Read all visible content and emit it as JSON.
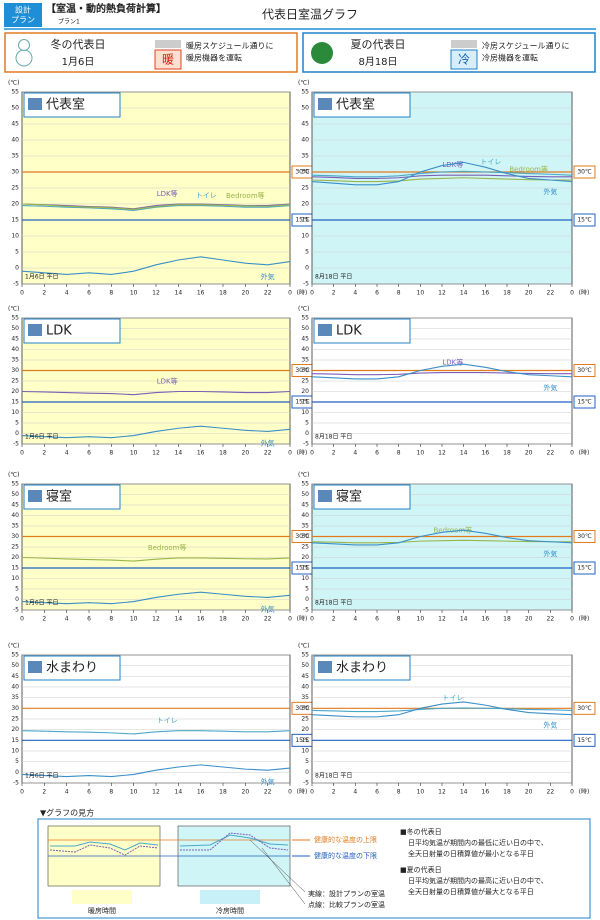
{
  "header": {
    "badge": [
      "設計",
      "プラン"
    ],
    "title": "【室温・動的熱負荷計算】",
    "plan": "プラン1",
    "page_title": "代表日室温グラフ"
  },
  "seasons": [
    {
      "title": "冬の代表日",
      "date": "1月6日",
      "icon": "暖",
      "note": [
        "暖房スケジュール通りに",
        "暖房機器を運転"
      ]
    },
    {
      "title": "夏の代表日",
      "date": "8月18日",
      "icon": "冷",
      "note": [
        "冷房スケジュール通りに",
        "冷房機器を運転"
      ]
    }
  ],
  "chart_data": [
    {
      "type": "line",
      "title": "代表室",
      "day_label": "1月6日 平日",
      "y_unit": "(℃)",
      "x_unit": "(時)",
      "background": "#ffffc8",
      "x": [
        0,
        2,
        4,
        6,
        8,
        10,
        12,
        14,
        16,
        18,
        20,
        22,
        24
      ],
      "xlim": [
        0,
        24
      ],
      "xticks": [
        0,
        2,
        4,
        6,
        8,
        10,
        12,
        14,
        16,
        18,
        20,
        22,
        {
          "value": 24,
          "label": "0"
        }
      ],
      "ylim": [
        -5,
        55
      ],
      "yticks": [
        -5,
        0,
        5,
        10,
        15,
        20,
        25,
        30,
        35,
        40,
        45,
        50,
        55
      ],
      "grid": true,
      "reference_lines": [
        {
          "value": 30,
          "label": "30℃",
          "color": "#e07b20"
        },
        {
          "value": 15,
          "label": "15℃",
          "color": "#2060c0"
        }
      ],
      "series": [
        {
          "name": "LDK等",
          "color": "#7b5fb5",
          "values": [
            20,
            19.8,
            19.5,
            19.2,
            19,
            18.5,
            19.5,
            20,
            20,
            19.8,
            19.5,
            19.5,
            20
          ]
        },
        {
          "name": "トイレ",
          "color": "#4aa8c8",
          "values": [
            19.5,
            19.3,
            19,
            18.8,
            18.5,
            18,
            19,
            19.5,
            19.5,
            19.3,
            19,
            19,
            19.5
          ]
        },
        {
          "name": "Bedroom等",
          "color": "#9ab54a",
          "values": [
            20,
            19.7,
            19.3,
            19,
            18.8,
            18.3,
            19.2,
            19.8,
            19.8,
            19.6,
            19.4,
            19.3,
            19.8
          ]
        },
        {
          "name": "外気",
          "color": "#3a8fc8",
          "values": [
            -1,
            -1.5,
            -2,
            -1.5,
            -2,
            -1,
            1,
            2.5,
            3.5,
            2.5,
            1.5,
            1,
            2
          ]
        }
      ]
    },
    {
      "type": "line",
      "title": "代表室",
      "day_label": "8月18日 平日",
      "y_unit": "(℃)",
      "x_unit": "(時)",
      "background": "#d0f5f7",
      "x": [
        0,
        2,
        4,
        6,
        8,
        10,
        12,
        14,
        16,
        18,
        20,
        22,
        24
      ],
      "xlim": [
        0,
        24
      ],
      "xticks": [
        0,
        2,
        4,
        6,
        8,
        10,
        12,
        14,
        16,
        18,
        20,
        22,
        {
          "value": 24,
          "label": "0"
        }
      ],
      "ylim": [
        -5,
        55
      ],
      "yticks": [
        -5,
        0,
        5,
        10,
        15,
        20,
        25,
        30,
        35,
        40,
        45,
        50,
        55
      ],
      "grid": true,
      "reference_lines": [
        {
          "value": 30,
          "label": "30℃",
          "color": "#e07b20"
        },
        {
          "value": 15,
          "label": "15℃",
          "color": "#2060c0"
        }
      ],
      "series": [
        {
          "name": "LDK等",
          "color": "#7b5fb5",
          "values": [
            28.5,
            28.3,
            28,
            28,
            28.2,
            28.8,
            29,
            29,
            29,
            28.8,
            28.6,
            28.5,
            28.5
          ]
        },
        {
          "name": "トイレ",
          "color": "#4aa8c8",
          "values": [
            29,
            28.8,
            28.5,
            28.5,
            28.8,
            29.5,
            30,
            30.2,
            30,
            29.8,
            29.5,
            29.3,
            29
          ]
        },
        {
          "name": "Bedroom等",
          "color": "#9ab54a",
          "values": [
            27.5,
            27.3,
            27,
            27,
            27.2,
            27.8,
            28,
            28.2,
            28,
            27.8,
            27.6,
            27.5,
            27.5
          ]
        },
        {
          "name": "外気",
          "color": "#3a8fc8",
          "values": [
            27,
            26.5,
            26,
            26,
            27,
            30,
            32,
            33,
            31.5,
            29.5,
            28,
            27.5,
            27
          ]
        }
      ]
    },
    {
      "type": "line",
      "title": "LDK",
      "day_label": "1月6日 平日",
      "y_unit": "(℃)",
      "x_unit": "(時)",
      "background": "#ffffc8",
      "x": [
        0,
        2,
        4,
        6,
        8,
        10,
        12,
        14,
        16,
        18,
        20,
        22,
        24
      ],
      "xlim": [
        0,
        24
      ],
      "xticks": [
        0,
        2,
        4,
        6,
        8,
        10,
        12,
        14,
        16,
        18,
        20,
        22,
        {
          "value": 24,
          "label": "0"
        }
      ],
      "ylim": [
        -5,
        55
      ],
      "yticks": [
        -5,
        0,
        5,
        10,
        15,
        20,
        25,
        30,
        35,
        40,
        45,
        50,
        55
      ],
      "grid": true,
      "reference_lines": [
        {
          "value": 30,
          "label": "30℃",
          "color": "#e07b20"
        },
        {
          "value": 15,
          "label": "15℃",
          "color": "#2060c0"
        }
      ],
      "series": [
        {
          "name": "LDK等",
          "color": "#7b5fb5",
          "values": [
            20,
            19.8,
            19.5,
            19.2,
            19,
            18.5,
            19.5,
            20,
            20,
            19.8,
            19.5,
            19.5,
            20
          ]
        },
        {
          "name": "外気",
          "color": "#3a8fc8",
          "values": [
            -1,
            -1.5,
            -2,
            -1.5,
            -2,
            -1,
            1,
            2.5,
            3.5,
            2.5,
            1.5,
            1,
            2
          ]
        }
      ]
    },
    {
      "type": "line",
      "title": "LDK",
      "day_label": "8月18日 平日",
      "y_unit": "(℃)",
      "x_unit": "(時)",
      "background": "#ffffff",
      "x": [
        0,
        2,
        4,
        6,
        8,
        10,
        12,
        14,
        16,
        18,
        20,
        22,
        24
      ],
      "xlim": [
        0,
        24
      ],
      "xticks": [
        0,
        2,
        4,
        6,
        8,
        10,
        12,
        14,
        16,
        18,
        20,
        22,
        {
          "value": 24,
          "label": "0"
        }
      ],
      "ylim": [
        -5,
        55
      ],
      "yticks": [
        -5,
        0,
        5,
        10,
        15,
        20,
        25,
        30,
        35,
        40,
        45,
        50,
        55
      ],
      "grid": true,
      "reference_lines": [
        {
          "value": 30,
          "label": "30℃",
          "color": "#e07b20"
        },
        {
          "value": 15,
          "label": "15℃",
          "color": "#2060c0"
        }
      ],
      "series": [
        {
          "name": "LDK等",
          "color": "#7b5fb5",
          "values": [
            28.5,
            28.3,
            28,
            28,
            28.2,
            28.8,
            29,
            29,
            29,
            28.8,
            28.6,
            28.5,
            28.5
          ]
        },
        {
          "name": "外気",
          "color": "#3a8fc8",
          "values": [
            27,
            26.5,
            26,
            26,
            27,
            30,
            32,
            33,
            31.5,
            29.5,
            28,
            27.5,
            27
          ]
        }
      ]
    },
    {
      "type": "line",
      "title": "寝室",
      "day_label": "1月6日 平日",
      "y_unit": "(℃)",
      "x_unit": "(時)",
      "background": "#ffffc8",
      "x": [
        0,
        2,
        4,
        6,
        8,
        10,
        12,
        14,
        16,
        18,
        20,
        22,
        24
      ],
      "xlim": [
        0,
        24
      ],
      "xticks": [
        0,
        2,
        4,
        6,
        8,
        10,
        12,
        14,
        16,
        18,
        20,
        22,
        {
          "value": 24,
          "label": "0"
        }
      ],
      "ylim": [
        -5,
        55
      ],
      "yticks": [
        -5,
        0,
        5,
        10,
        15,
        20,
        25,
        30,
        35,
        40,
        45,
        50,
        55
      ],
      "grid": true,
      "reference_lines": [
        {
          "value": 30,
          "label": "30℃",
          "color": "#e07b20"
        },
        {
          "value": 15,
          "label": "15℃",
          "color": "#2060c0"
        }
      ],
      "series": [
        {
          "name": "Bedroom等",
          "color": "#9ab54a",
          "values": [
            20,
            19.7,
            19.3,
            19,
            18.8,
            18.3,
            19.2,
            19.8,
            19.8,
            19.6,
            19.4,
            19.3,
            19.8
          ]
        },
        {
          "name": "外気",
          "color": "#3a8fc8",
          "values": [
            -1,
            -1.5,
            -2,
            -1.5,
            -2,
            -1,
            1,
            2.5,
            3.5,
            2.5,
            1.5,
            1,
            2
          ]
        }
      ]
    },
    {
      "type": "line",
      "title": "寝室",
      "day_label": "8月18日 平日",
      "y_unit": "(℃)",
      "x_unit": "(時)",
      "background": "#d0f5f7",
      "x": [
        0,
        2,
        4,
        6,
        8,
        10,
        12,
        14,
        16,
        18,
        20,
        22,
        24
      ],
      "xlim": [
        0,
        24
      ],
      "xticks": [
        0,
        2,
        4,
        6,
        8,
        10,
        12,
        14,
        16,
        18,
        20,
        22,
        {
          "value": 24,
          "label": "0"
        }
      ],
      "ylim": [
        -5,
        55
      ],
      "yticks": [
        -5,
        0,
        5,
        10,
        15,
        20,
        25,
        30,
        35,
        40,
        45,
        50,
        55
      ],
      "grid": true,
      "reference_lines": [
        {
          "value": 30,
          "label": "30℃",
          "color": "#e07b20"
        },
        {
          "value": 15,
          "label": "15℃",
          "color": "#2060c0"
        }
      ],
      "series": [
        {
          "name": "Bedroom等",
          "color": "#9ab54a",
          "values": [
            27.5,
            27.3,
            27,
            27,
            27.2,
            27.8,
            28,
            28.2,
            28,
            27.8,
            27.6,
            27.5,
            27.5
          ]
        },
        {
          "name": "外気",
          "color": "#3a8fc8",
          "values": [
            27,
            26.5,
            26,
            26,
            27,
            30,
            32,
            33,
            31.5,
            29.5,
            28,
            27.5,
            27
          ]
        }
      ]
    },
    {
      "type": "line",
      "title": "水まわり",
      "day_label": "1月6日 平日",
      "y_unit": "(℃)",
      "x_unit": "(時)",
      "background": "#ffffff",
      "x": [
        0,
        2,
        4,
        6,
        8,
        10,
        12,
        14,
        16,
        18,
        20,
        22,
        24
      ],
      "xlim": [
        0,
        24
      ],
      "xticks": [
        0,
        2,
        4,
        6,
        8,
        10,
        12,
        14,
        16,
        18,
        20,
        22,
        {
          "value": 24,
          "label": "0"
        }
      ],
      "ylim": [
        -5,
        55
      ],
      "yticks": [
        -5,
        0,
        5,
        10,
        15,
        20,
        25,
        30,
        35,
        40,
        45,
        50,
        55
      ],
      "grid": true,
      "reference_lines": [
        {
          "value": 30,
          "label": "30℃",
          "color": "#e07b20"
        },
        {
          "value": 15,
          "label": "15℃",
          "color": "#2060c0"
        }
      ],
      "series": [
        {
          "name": "トイレ",
          "color": "#4aa8c8",
          "values": [
            19.5,
            19.3,
            19,
            18.8,
            18.5,
            18,
            19,
            19.5,
            19.5,
            19.3,
            19,
            19,
            19.5
          ]
        },
        {
          "name": "外気",
          "color": "#3a8fc8",
          "values": [
            -1,
            -1.5,
            -2,
            -1.5,
            -2,
            -1,
            1,
            2.5,
            3.5,
            2.5,
            1.5,
            1,
            2
          ]
        }
      ]
    },
    {
      "type": "line",
      "title": "水まわり",
      "day_label": "8月18日 平日",
      "y_unit": "(℃)",
      "x_unit": "(時)",
      "background": "#ffffff",
      "x": [
        0,
        2,
        4,
        6,
        8,
        10,
        12,
        14,
        16,
        18,
        20,
        22,
        24
      ],
      "xlim": [
        0,
        24
      ],
      "xticks": [
        0,
        2,
        4,
        6,
        8,
        10,
        12,
        14,
        16,
        18,
        20,
        22,
        {
          "value": 24,
          "label": "0"
        }
      ],
      "ylim": [
        -5,
        55
      ],
      "yticks": [
        -5,
        0,
        5,
        10,
        15,
        20,
        25,
        30,
        35,
        40,
        45,
        50,
        55
      ],
      "grid": true,
      "reference_lines": [
        {
          "value": 30,
          "label": "30℃",
          "color": "#e07b20"
        },
        {
          "value": 15,
          "label": "15℃",
          "color": "#2060c0"
        }
      ],
      "series": [
        {
          "name": "トイレ",
          "color": "#4aa8c8",
          "values": [
            29,
            28.8,
            28.5,
            28.5,
            28.8,
            29.5,
            30,
            30.2,
            30,
            29.8,
            29.5,
            29.3,
            29
          ]
        },
        {
          "name": "外気",
          "color": "#3a8fc8",
          "values": [
            27,
            26.5,
            26,
            26,
            27,
            30,
            32,
            33,
            31.5,
            29.5,
            28,
            27.5,
            27
          ]
        }
      ]
    }
  ],
  "guide": {
    "title": "▼グラフの見方",
    "upper": "健康的な温度の上限",
    "lower": "健康的な温度の下限",
    "heating": "暖房時間",
    "cooling": "冷房時間",
    "solid": "実線：設計プランの室温",
    "dotted": "点線：比較プランの室温",
    "winter": {
      "title": "■冬の代表日",
      "lines": [
        "日平均気温が期間内の最低に近い日の中で、",
        "全天日射量の日積算値が最小となる平日"
      ]
    },
    "summer": {
      "title": "■夏の代表日",
      "lines": [
        "日平均気温が期間内の最高に近い日の中で、",
        "全天日射量の日積算値が最大となる平日"
      ]
    }
  }
}
